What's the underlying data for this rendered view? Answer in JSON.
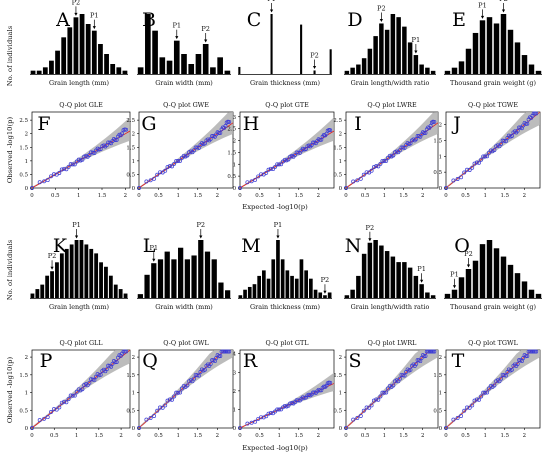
{
  "figure": {
    "hist_ylabel": "No. of individuals",
    "qq_ylabel": "Observed -log10(p)",
    "qq_xlabel": "Expected -log10(p)",
    "p1_label": "P1",
    "p2_label": "P2",
    "colors": {
      "bar": "#000000",
      "point": "#3b3bd6",
      "fit_line": "#e02020",
      "band": "#b0b0b0"
    }
  },
  "chart_data": [
    {
      "type": "bar",
      "panel": "A",
      "xlabel": "Grain length (mm)",
      "values": [
        1,
        1,
        2,
        4,
        7,
        11,
        14,
        17,
        18,
        15,
        13,
        9,
        6,
        3,
        2,
        1
      ],
      "p1_index": 10,
      "p2_index": 7
    },
    {
      "type": "bar",
      "panel": "B",
      "xlabel": "Grain width (mm)",
      "values": [
        2,
        18,
        13,
        5,
        4,
        10,
        6,
        3,
        6,
        9,
        2,
        5,
        1
      ],
      "p1_index": 5,
      "p2_index": 9
    },
    {
      "type": "bar",
      "panel": "C",
      "xlabel": "Grain thickness (mm)",
      "values": [
        2,
        0,
        0,
        0,
        0,
        0,
        0,
        0,
        0,
        0,
        0,
        0,
        17,
        0,
        0,
        0,
        0,
        0,
        0,
        0,
        0,
        0,
        0,
        14,
        0,
        0,
        0,
        0,
        1,
        0,
        0,
        0,
        0,
        0,
        7
      ],
      "p1_index": 12,
      "p2_index": 28
    },
    {
      "type": "bar",
      "panel": "D",
      "xlabel": "Grain length/width ratio",
      "values": [
        1,
        2,
        3,
        5,
        8,
        12,
        16,
        14,
        19,
        18,
        15,
        10,
        6,
        3,
        2,
        1
      ],
      "p1_index": 12,
      "p2_index": 6
    },
    {
      "type": "bar",
      "panel": "E",
      "xlabel": "Thousand grain weight (g)",
      "values": [
        1,
        2,
        4,
        8,
        13,
        17,
        18,
        16,
        19,
        14,
        10,
        6,
        3,
        1
      ],
      "p1_index": 5,
      "p2_index": 8
    },
    {
      "type": "scatter",
      "panel": "F",
      "title": "Q-Q plot GLE",
      "xlim": [
        0,
        2.1
      ],
      "ylim": [
        0,
        2.8
      ],
      "xticks": [
        0,
        0.5,
        1,
        1.5,
        2
      ],
      "yticks": [
        0,
        0.5,
        1,
        1.5,
        2,
        2.5
      ]
    },
    {
      "type": "scatter",
      "panel": "G",
      "title": "Q-Q plot GWE",
      "xlim": [
        0,
        2.4
      ],
      "ylim": [
        0,
        2.8
      ],
      "xticks": [
        0,
        0.5,
        1,
        1.5,
        2
      ],
      "yticks": [
        0,
        0.5,
        1,
        1.5,
        2,
        2.5
      ]
    },
    {
      "type": "scatter",
      "panel": "H",
      "title": "Q-Q plot GTE",
      "xlim": [
        0,
        2.4
      ],
      "ylim": [
        0,
        3.2
      ],
      "xticks": [
        0,
        0.5,
        1,
        1.5,
        2
      ],
      "yticks": [
        0,
        0.5,
        1,
        1.5,
        2,
        2.5,
        3
      ]
    },
    {
      "type": "scatter",
      "panel": "I",
      "title": "Q-Q plot LWRE",
      "xlim": [
        0,
        2.4
      ],
      "ylim": [
        0,
        2.8
      ],
      "xticks": [
        0,
        0.5,
        1,
        1.5,
        2
      ],
      "yticks": [
        0,
        0.5,
        1,
        1.5,
        2,
        2.5
      ]
    },
    {
      "type": "scatter",
      "panel": "J",
      "title": "Q-Q plot TGWE",
      "xlim": [
        0,
        2.4
      ],
      "ylim": [
        0,
        2.4
      ],
      "xticks": [
        0,
        0.5,
        1,
        1.5,
        2
      ],
      "yticks": [
        0,
        0.5,
        1,
        1.5,
        2
      ]
    },
    {
      "type": "bar",
      "panel": "K",
      "xlabel": "Grain length (mm)",
      "values": [
        1,
        2,
        3,
        5,
        6,
        8,
        10,
        11,
        12,
        13,
        13,
        12,
        11,
        10,
        8,
        7,
        5,
        3,
        2,
        1
      ],
      "p1_index": 9,
      "p2_index": 4
    },
    {
      "type": "bar",
      "panel": "L",
      "xlabel": "Grain width (mm)",
      "values": [
        1,
        6,
        9,
        10,
        12,
        10,
        13,
        10,
        11,
        15,
        12,
        10,
        4,
        2
      ],
      "p1_index": 2,
      "p2_index": 9
    },
    {
      "type": "bar",
      "panel": "M",
      "xlabel": "Grain thickness (mm)",
      "values": [
        1,
        3,
        4,
        5,
        8,
        10,
        7,
        14,
        21,
        14,
        10,
        8,
        7,
        14,
        10,
        7,
        3,
        2,
        1,
        2
      ],
      "p1_index": 8,
      "p2_index": 18
    },
    {
      "type": "bar",
      "panel": "N",
      "xlabel": "Grain length/width ratio",
      "values": [
        1,
        3,
        8,
        16,
        20,
        21,
        19,
        17,
        15,
        13,
        13,
        11,
        8,
        5,
        2,
        1
      ],
      "p1_index": 13,
      "p2_index": 4
    },
    {
      "type": "bar",
      "panel": "O",
      "xlabel": "Thousand grain weight (g)",
      "values": [
        1,
        2,
        5,
        7,
        9,
        13,
        14,
        12,
        10,
        8,
        6,
        4,
        2,
        1
      ],
      "p1_index": 1,
      "p2_index": 3
    },
    {
      "type": "scatter",
      "panel": "P",
      "title": "Q-Q plot GLL",
      "xlim": [
        0,
        2.2
      ],
      "ylim": [
        0,
        2.2
      ],
      "xticks": [
        0,
        0.5,
        1,
        1.5,
        2
      ],
      "yticks": [
        0,
        0.5,
        1,
        1.5,
        2
      ]
    },
    {
      "type": "scatter",
      "panel": "Q",
      "title": "Q-Q plot GWL",
      "xlim": [
        0,
        2.4
      ],
      "ylim": [
        0,
        2.2
      ],
      "xticks": [
        0,
        0.5,
        1,
        1.5,
        2
      ],
      "yticks": [
        0,
        0.5,
        1,
        1.5,
        2
      ]
    },
    {
      "type": "scatter",
      "panel": "R",
      "title": "Q-Q plot GTL",
      "xlim": [
        0,
        2.4
      ],
      "ylim": [
        0,
        4.2
      ],
      "xticks": [
        0,
        0.5,
        1,
        1.5,
        2
      ],
      "yticks": [
        0,
        1,
        2,
        3,
        4
      ]
    },
    {
      "type": "scatter",
      "panel": "S",
      "title": "Q-Q plot LWRL",
      "xlim": [
        0,
        2.4
      ],
      "ylim": [
        0,
        2.2
      ],
      "xticks": [
        0,
        0.5,
        1,
        1.5,
        2
      ],
      "yticks": [
        0,
        0.5,
        1,
        1.5,
        2
      ]
    },
    {
      "type": "scatter",
      "panel": "T",
      "title": "Q-Q plot TGWL",
      "xlim": [
        0,
        2.4
      ],
      "ylim": [
        0,
        2.2
      ],
      "xticks": [
        0,
        0.5,
        1,
        1.5,
        2
      ],
      "yticks": [
        0,
        0.5,
        1,
        1.5,
        2
      ]
    }
  ]
}
